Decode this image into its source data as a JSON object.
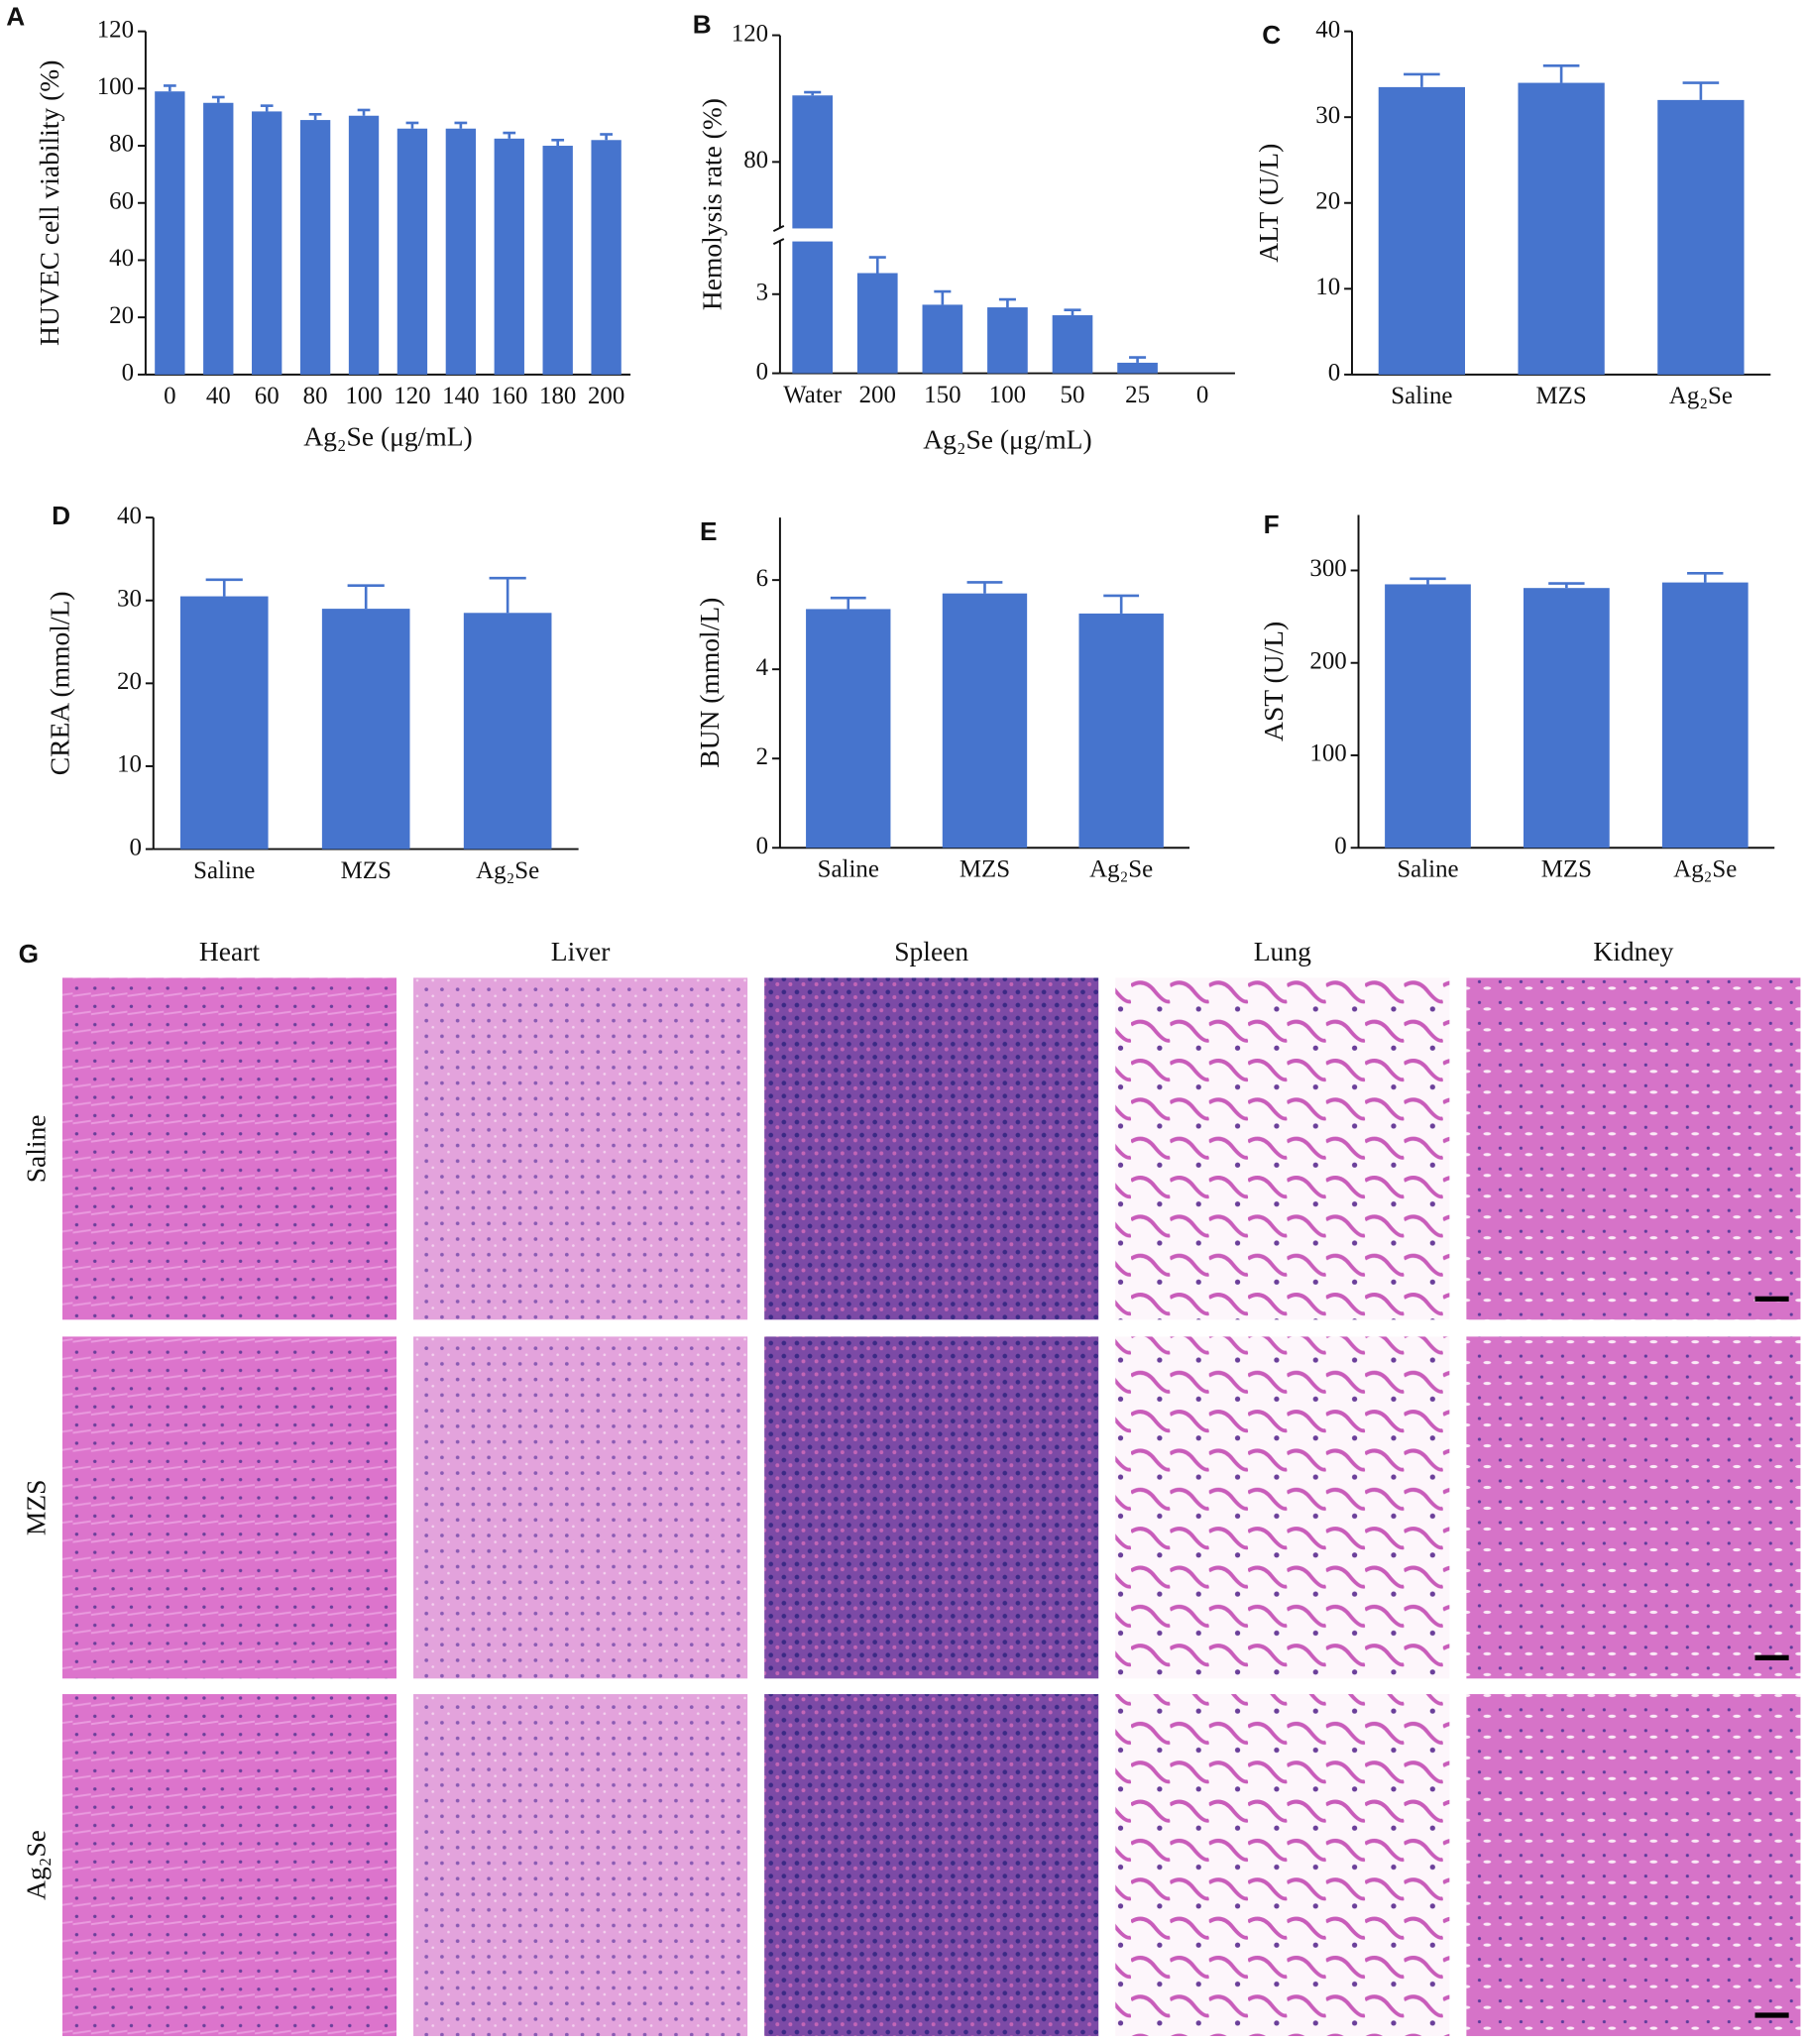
{
  "chart_data": [
    {
      "label": "A",
      "type": "bar",
      "ylabel": "HUVEC cell viability (%)",
      "xlabel": "Ag₂Se (μg/mL)",
      "categories": [
        "0",
        "40",
        "60",
        "80",
        "100",
        "120",
        "140",
        "160",
        "180",
        "200"
      ],
      "values": [
        99,
        95,
        92,
        89,
        90.5,
        86,
        86,
        82.5,
        80,
        82
      ],
      "errors": [
        2,
        2,
        2,
        2,
        2,
        2,
        2,
        2,
        2,
        2
      ],
      "color": "#4674cd",
      "ylim": [
        0,
        120
      ],
      "yticks": [
        0,
        20,
        40,
        60,
        80,
        100,
        120
      ]
    },
    {
      "label": "B",
      "type": "bar",
      "ylabel": "Hemolysis rate (%)",
      "xlabel": "Ag₂Se (μg/mL)",
      "categories": [
        "Water",
        "200",
        "150",
        "100",
        "50",
        "25",
        "0"
      ],
      "values": [
        101,
        3.8,
        2.6,
        2.5,
        2.2,
        0.4,
        0
      ],
      "errors": [
        1,
        0.6,
        0.5,
        0.3,
        0.2,
        0.2,
        0
      ],
      "color": "#4674cd",
      "ylim": [
        0,
        120
      ],
      "ybreak": [
        5,
        59
      ],
      "yticks": [
        0,
        3,
        80,
        120
      ]
    },
    {
      "label": "C",
      "type": "bar",
      "ylabel": "ALT (U/L)",
      "categories": [
        "Saline",
        "MZS",
        "Ag₂Se"
      ],
      "values": [
        33.5,
        34,
        32
      ],
      "errors": [
        1.5,
        2,
        2
      ],
      "color": "#4674cd",
      "ylim": [
        0,
        40
      ],
      "yticks": [
        0,
        10,
        20,
        30,
        40
      ]
    },
    {
      "label": "D",
      "type": "bar",
      "ylabel": "CREA (mmol/L)",
      "categories": [
        "Saline",
        "MZS",
        "Ag₂Se"
      ],
      "values": [
        30.5,
        29,
        28.5
      ],
      "errors": [
        2,
        2.8,
        4.2
      ],
      "color": "#4674cd",
      "ylim": [
        0,
        40
      ],
      "yticks": [
        0,
        10,
        20,
        30,
        40
      ]
    },
    {
      "label": "E",
      "type": "bar",
      "ylabel": "BUN (mmol/L)",
      "categories": [
        "Saline",
        "MZS",
        "Ag₂Se"
      ],
      "values": [
        5.35,
        5.7,
        5.25
      ],
      "errors": [
        0.25,
        0.25,
        0.4
      ],
      "color": "#4674cd",
      "ylim": [
        0,
        7.4
      ],
      "yticks": [
        0,
        2,
        4,
        6
      ]
    },
    {
      "label": "F",
      "type": "bar",
      "ylabel": "AST (U/L)",
      "categories": [
        "Saline",
        "MZS",
        "Ag₂Se"
      ],
      "values": [
        285,
        281,
        287
      ],
      "errors": [
        6,
        5,
        10
      ],
      "color": "#4674cd",
      "ylim": [
        0,
        360
      ],
      "yticks": [
        0,
        100,
        200,
        300
      ]
    }
  ],
  "histology": {
    "label": "G",
    "columns": [
      "Heart",
      "Liver",
      "Spleen",
      "Lung",
      "Kidney"
    ],
    "rows": [
      "Saline",
      "MZS",
      "Ag₂Se"
    ]
  }
}
